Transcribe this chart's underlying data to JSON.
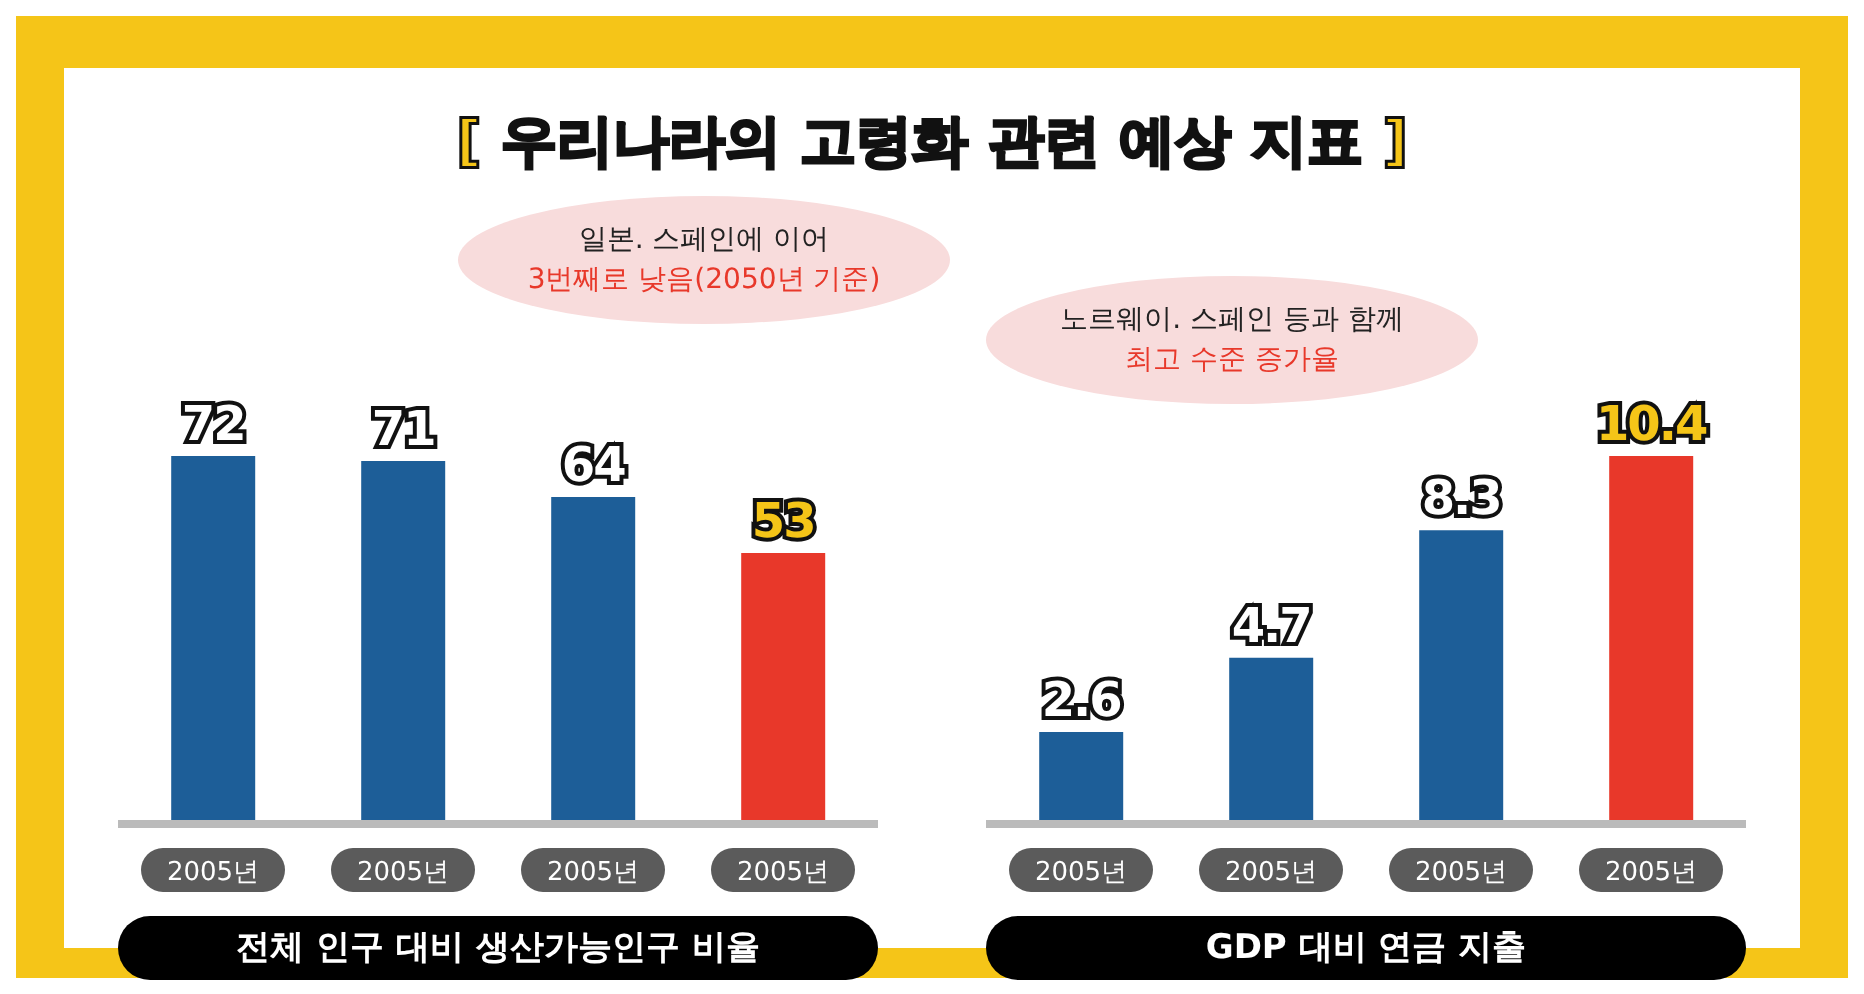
{
  "chart_data": [
    {
      "type": "bar",
      "title": "[ 우리나라의 고령화 관련 예상 지표 ]",
      "categories": [
        "2005년",
        "2005년",
        "2005년",
        "2005년"
      ],
      "values": [
        72,
        71,
        64,
        53
      ],
      "colors": [
        "#1d5e98",
        "#1d5e98",
        "#1d5e98",
        "#e8382a"
      ],
      "data_labels": true,
      "xlabel": "전체 인구 대비 생산가능인구 비율",
      "annotations": [
        "일본. 스페인에 이어",
        "3번째로 낮음(2050년 기준)"
      ]
    },
    {
      "type": "bar",
      "categories": [
        "2005년",
        "2005년",
        "2005년",
        "2005년"
      ],
      "values": [
        2.6,
        4.7,
        8.3,
        10.4
      ],
      "colors": [
        "#1d5e98",
        "#1d5e98",
        "#1d5e98",
        "#e8382a"
      ],
      "data_labels": true,
      "xlabel": "GDP 대비 연금 지출",
      "annotations": [
        "노르웨이. 스페인 등과 함께",
        "최고 수준 증가율"
      ]
    }
  ]
}
